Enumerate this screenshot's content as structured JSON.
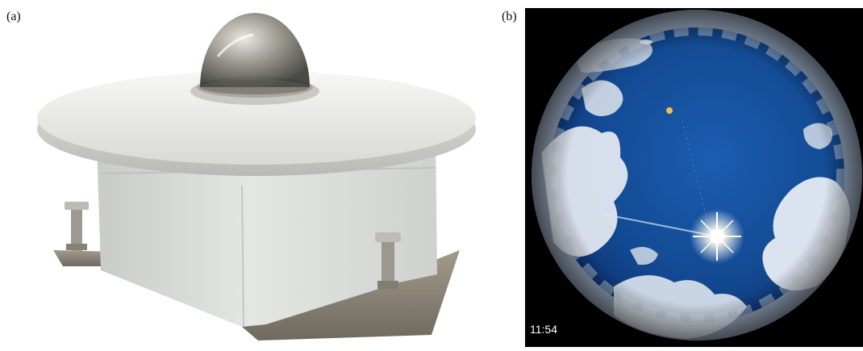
{
  "panel_a": {
    "label": "(a)",
    "subject": "sky-imager-device"
  },
  "panel_b": {
    "label": "(b)",
    "subject": "all-sky-fisheye-image",
    "timestamp": "11:54"
  },
  "colors": {
    "sky_deep": "#0a2d6b",
    "sky_mid": "#1e5fb0",
    "cloud": "#e9eef5",
    "device_body": "#dcdedd",
    "device_disc": "#ecece9",
    "base_plate": "#8c8577",
    "sun": "#ffffff"
  }
}
